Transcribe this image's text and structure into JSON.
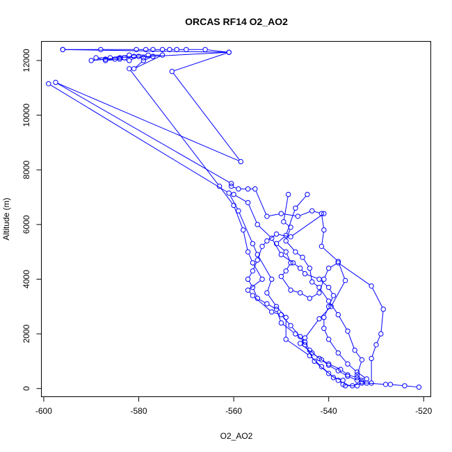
{
  "chart_data": {
    "type": "line",
    "title": "ORCAS RF14 O2_AO2",
    "xlabel": "O2_AO2",
    "ylabel": "Altitude (m)",
    "xlim": [
      -600.5,
      -518.5
    ],
    "ylim": [
      -300,
      12700
    ],
    "xticks": [
      -600,
      -580,
      -560,
      -540,
      -520
    ],
    "yticks": [
      0,
      2000,
      4000,
      6000,
      8000,
      10000,
      12000
    ],
    "marker": "open-circle",
    "series": [
      {
        "color": "#0000ff",
        "points": [
          [
            -596,
            12400
          ],
          [
            -561,
            12300
          ],
          [
            -573,
            11600
          ],
          [
            -558.5,
            8300
          ],
          [
            -597.5,
            11200
          ],
          [
            -560.5,
            7500
          ],
          [
            -560.5,
            7400
          ],
          [
            -559,
            7300
          ],
          [
            -557,
            7300
          ],
          [
            -555.5,
            7300
          ],
          [
            -553,
            6300
          ],
          [
            -550,
            6400
          ],
          [
            -546.5,
            6300
          ],
          [
            -543.5,
            6500
          ],
          [
            -541.5,
            6400
          ],
          [
            -541,
            5800
          ],
          [
            -541.5,
            5200
          ],
          [
            -538,
            4650
          ],
          [
            -536.5,
            3950
          ],
          [
            -539.5,
            3000
          ],
          [
            -542,
            2550
          ],
          [
            -545,
            1850
          ],
          [
            -546,
            1650
          ],
          [
            -543.5,
            1300
          ],
          [
            -541.5,
            1050
          ],
          [
            -540,
            850
          ],
          [
            -538,
            650
          ],
          [
            -536,
            450
          ],
          [
            -534,
            300
          ],
          [
            -532,
            200
          ],
          [
            -528,
            150
          ],
          [
            -527,
            150
          ],
          [
            -524,
            100
          ],
          [
            -521,
            50
          ]
        ]
      },
      {
        "color": "#0000ff",
        "points": [
          [
            -596,
            12400
          ],
          [
            -588,
            12400
          ],
          [
            -580.5,
            12400
          ],
          [
            -578.5,
            12400
          ],
          [
            -577,
            12400
          ],
          [
            -575,
            12400
          ],
          [
            -573.5,
            12400
          ],
          [
            -572,
            12400
          ],
          [
            -570,
            12400
          ],
          [
            -566,
            12400
          ],
          [
            -561,
            12300
          ],
          [
            -583,
            12100
          ],
          [
            -585,
            12050
          ],
          [
            -587,
            12050
          ],
          [
            -590,
            12000
          ],
          [
            -584,
            12100
          ],
          [
            -581,
            12150
          ],
          [
            -579,
            12100
          ],
          [
            -577,
            12150
          ],
          [
            -579,
            12000
          ],
          [
            -581,
            11700
          ],
          [
            -575,
            12200
          ],
          [
            -578,
            12200
          ],
          [
            -582,
            12200
          ],
          [
            -586,
            12100
          ],
          [
            -589,
            12100
          ],
          [
            -587,
            12000
          ],
          [
            -584,
            12050
          ],
          [
            -582,
            12000
          ],
          [
            -580,
            12150
          ]
        ]
      },
      {
        "color": "#0000ff",
        "points": [
          [
            -582,
            11700
          ],
          [
            -563,
            7400
          ],
          [
            -560,
            6700
          ],
          [
            -558,
            5800
          ],
          [
            -557,
            5000
          ],
          [
            -556,
            4600
          ],
          [
            -554,
            4000
          ],
          [
            -557,
            3600
          ],
          [
            -556,
            3400
          ],
          [
            -552,
            2800
          ],
          [
            -550,
            2700
          ],
          [
            -548,
            2300
          ],
          [
            -546,
            1900
          ],
          [
            -545,
            1600
          ],
          [
            -543,
            1000
          ],
          [
            -540,
            550
          ],
          [
            -538,
            300
          ],
          [
            -537,
            150
          ],
          [
            -535,
            100
          ],
          [
            -533,
            200
          ],
          [
            -531,
            200
          ],
          [
            -531,
            1100
          ],
          [
            -530,
            1600
          ],
          [
            -529,
            2000
          ],
          [
            -528.5,
            2900
          ],
          [
            -531,
            3750
          ],
          [
            -538,
            4600
          ],
          [
            -540,
            4400
          ],
          [
            -541,
            4000
          ],
          [
            -542,
            3500
          ],
          [
            -544,
            3300
          ],
          [
            -546,
            3500
          ],
          [
            -548,
            3600
          ],
          [
            -550,
            4100
          ],
          [
            -549,
            4300
          ],
          [
            -548,
            4600
          ],
          [
            -549,
            5000
          ],
          [
            -551,
            5300
          ],
          [
            -549,
            5600
          ],
          [
            -547,
            6600
          ],
          [
            -544.5,
            7100
          ]
        ]
      },
      {
        "color": "#0000ff",
        "points": [
          [
            -599,
            11150
          ],
          [
            -561,
            7150
          ],
          [
            -559,
            6500
          ],
          [
            -556,
            5300
          ],
          [
            -555,
            4900
          ],
          [
            -552,
            4000
          ],
          [
            -553,
            3500
          ],
          [
            -551,
            3000
          ],
          [
            -549,
            2600
          ],
          [
            -549,
            1800
          ],
          [
            -544,
            1200
          ],
          [
            -541.5,
            800
          ],
          [
            -539,
            400
          ],
          [
            -537,
            300
          ],
          [
            -536.5,
            100
          ],
          [
            -534,
            100
          ],
          [
            -533,
            250
          ],
          [
            -534,
            500
          ],
          [
            -533,
            1050
          ],
          [
            -534.5,
            1400
          ],
          [
            -536,
            2100
          ],
          [
            -538,
            2700
          ],
          [
            -540,
            3200
          ],
          [
            -542,
            3700
          ],
          [
            -543.5,
            3900
          ],
          [
            -544,
            4400
          ],
          [
            -545.5,
            4800
          ],
          [
            -547,
            5000
          ],
          [
            -549,
            5400
          ],
          [
            -548,
            5900
          ],
          [
            -549.5,
            6100
          ],
          [
            -548.5,
            7100
          ]
        ]
      },
      {
        "color": "#0000ff",
        "points": [
          [
            -541,
            6400
          ],
          [
            -548,
            5550
          ],
          [
            -551,
            5650
          ],
          [
            -553,
            5400
          ],
          [
            -554,
            5200
          ],
          [
            -555,
            4700
          ],
          [
            -556,
            4300
          ],
          [
            -557,
            4000
          ],
          [
            -556,
            3700
          ],
          [
            -555,
            3300
          ],
          [
            -553,
            3100
          ],
          [
            -551,
            2900
          ],
          [
            -550,
            2400
          ],
          [
            -547,
            2000
          ],
          [
            -545,
            1700
          ],
          [
            -544,
            1400
          ],
          [
            -542,
            1100
          ],
          [
            -540,
            900
          ],
          [
            -537.5,
            700
          ],
          [
            -536,
            500
          ],
          [
            -534,
            400
          ],
          [
            -532,
            350
          ],
          [
            -534,
            600
          ],
          [
            -536,
            900
          ],
          [
            -538,
            1300
          ],
          [
            -540,
            1800
          ],
          [
            -541,
            2200
          ],
          [
            -541,
            2600
          ],
          [
            -540,
            3000
          ],
          [
            -539,
            3400
          ],
          [
            -540,
            3700
          ],
          [
            -542,
            4000
          ],
          [
            -545,
            4200
          ],
          [
            -546,
            4400
          ],
          [
            -547.5,
            4600
          ],
          [
            -550,
            4900
          ],
          [
            -552,
            5500
          ],
          [
            -555,
            6000
          ],
          [
            -557,
            6800
          ],
          [
            -560,
            7100
          ]
        ]
      }
    ]
  }
}
